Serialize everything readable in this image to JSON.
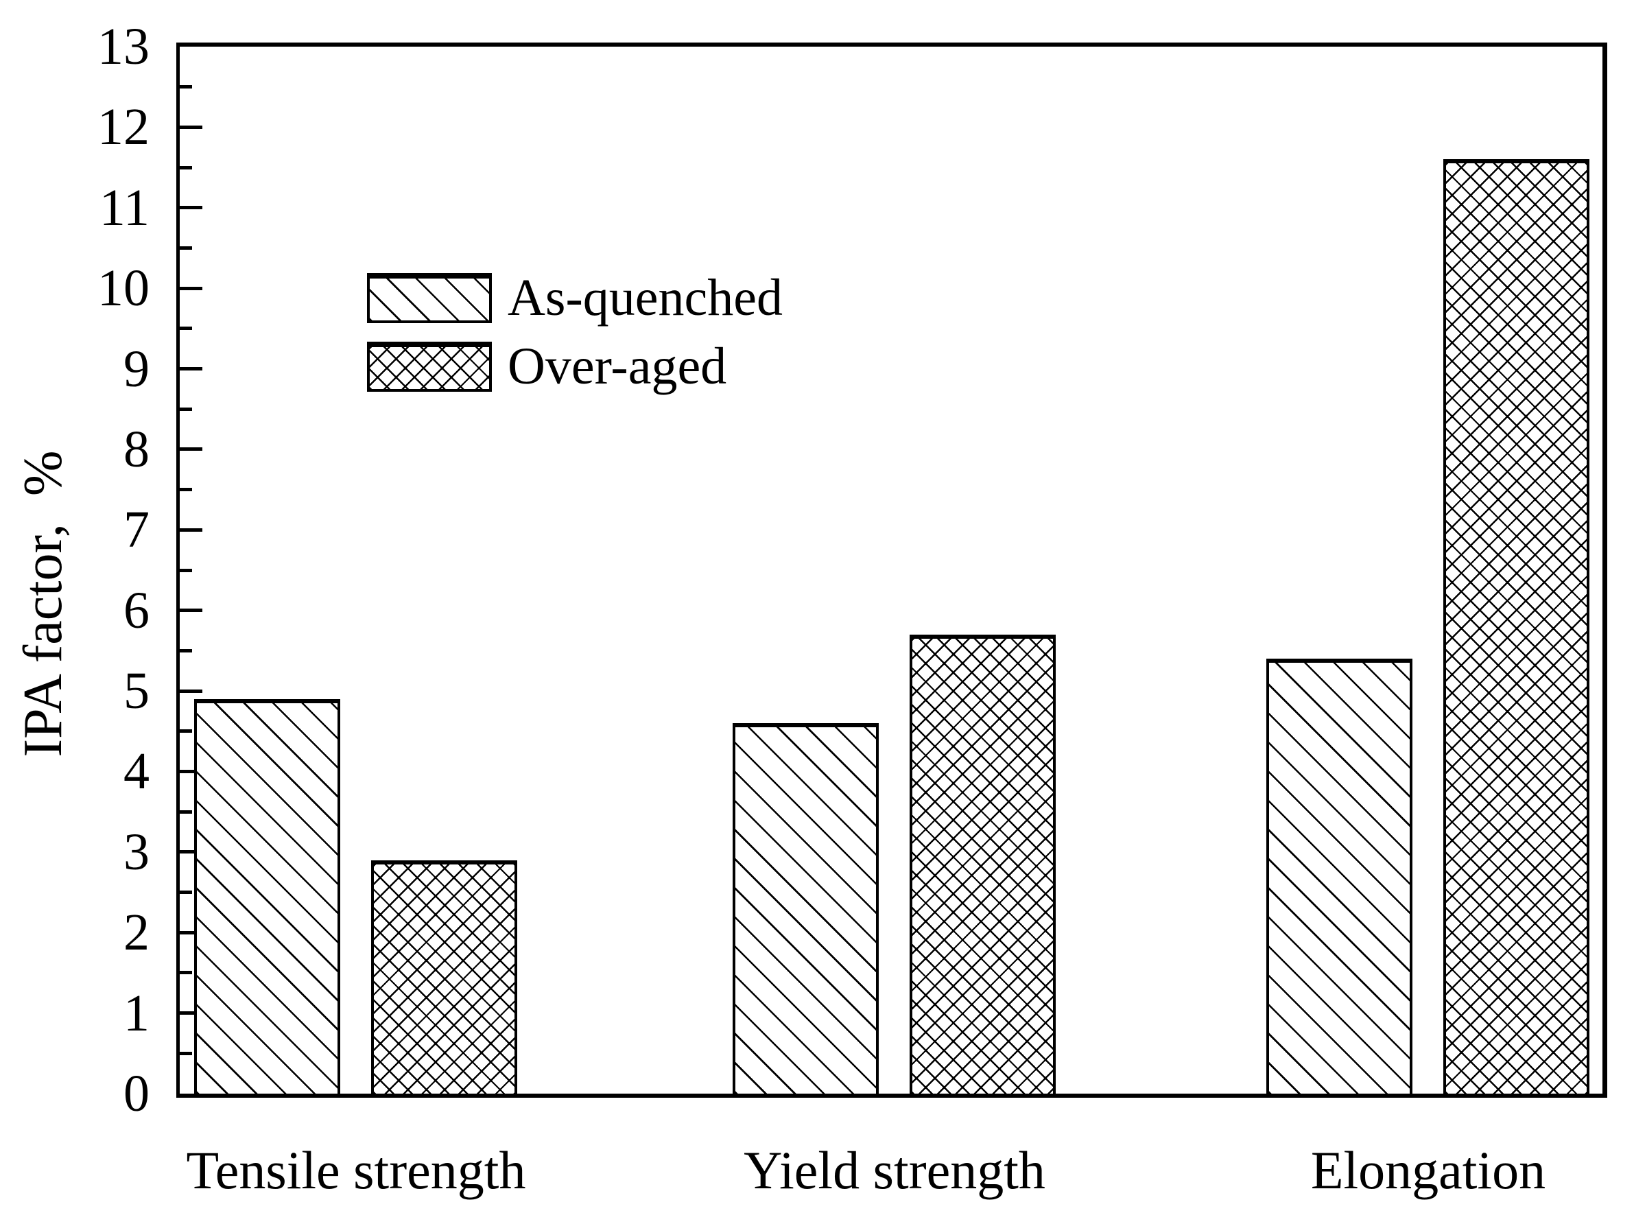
{
  "chart_data": {
    "type": "bar",
    "title": "",
    "categories": [
      "Tensile strength",
      "Yield strength",
      "Elongation"
    ],
    "series": [
      {
        "name": "As-quenched",
        "pattern": "diagonal-hatch",
        "values": [
          4.9,
          4.6,
          5.4
        ]
      },
      {
        "name": "Over-aged",
        "pattern": "crosshatch",
        "values": [
          2.9,
          5.7,
          11.6
        ]
      }
    ],
    "xlabel": "",
    "ylabel": "IPA factor,  %",
    "ylim": [
      0,
      13
    ],
    "ytick_step": 1,
    "minor_tick_step": 0.5,
    "grid": false,
    "legend_position": "upper-left-inside",
    "frame": "full-box",
    "colors": {
      "foreground": "#000000",
      "background": "#ffffff"
    }
  }
}
